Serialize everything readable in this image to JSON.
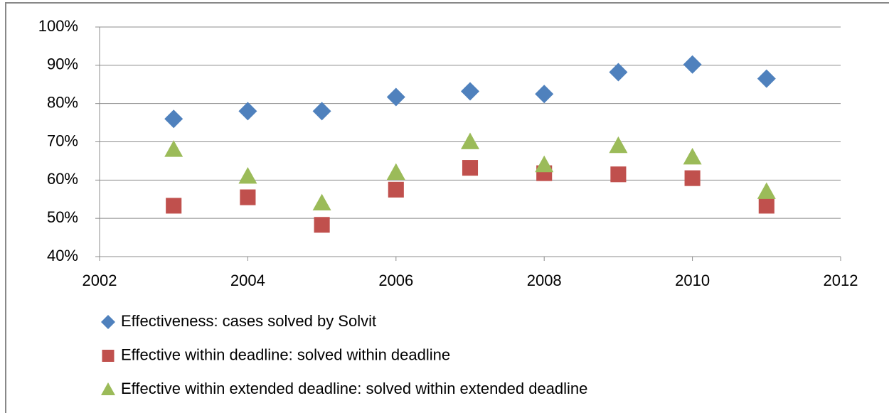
{
  "chart_data": {
    "type": "scatter",
    "x": [
      2003,
      2004,
      2005,
      2006,
      2007,
      2008,
      2009,
      2010,
      2011
    ],
    "series": [
      {
        "name": "Effectiveness: cases solved by Solvit",
        "color": "#4f81bd",
        "marker": "diamond",
        "values": [
          76,
          78,
          78,
          81.7,
          83.2,
          82.5,
          88.2,
          90.2,
          86.5
        ]
      },
      {
        "name": "Effective within deadline: solved within deadline",
        "color": "#c0504d",
        "marker": "square",
        "values": [
          53.3,
          55.5,
          48.3,
          57.5,
          63.2,
          61.8,
          61.5,
          60.5,
          53.3
        ]
      },
      {
        "name": "Effective within extended deadline: solved within extended deadline",
        "color": "#9bbb59",
        "marker": "triangle",
        "values": [
          68,
          61,
          54,
          62,
          70,
          64,
          69,
          66,
          57
        ]
      }
    ],
    "xlim": [
      2002,
      2012
    ],
    "xticks": [
      2002,
      2004,
      2006,
      2008,
      2010,
      2012
    ],
    "ylim": [
      40,
      100
    ],
    "yticks": [
      {
        "value": 40,
        "label": "40%"
      },
      {
        "value": 50,
        "label": "50%"
      },
      {
        "value": 60,
        "label": "60%"
      },
      {
        "value": 70,
        "label": "70%"
      },
      {
        "value": 80,
        "label": "80%"
      },
      {
        "value": 90,
        "label": "90%"
      },
      {
        "value": 100,
        "label": "100%"
      }
    ],
    "grid": true,
    "legend": "bottom"
  }
}
